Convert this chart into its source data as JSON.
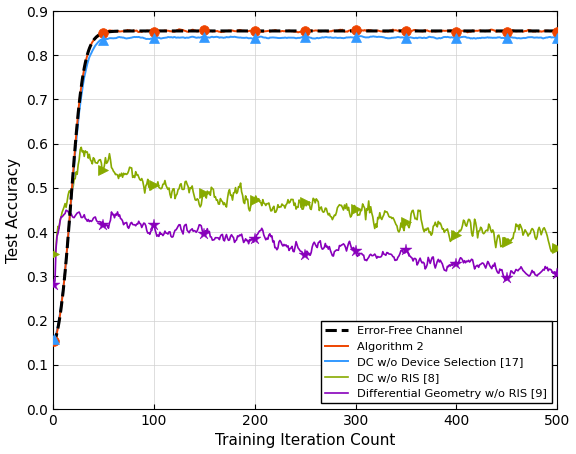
{
  "title": "",
  "xlabel": "Training Iteration Count",
  "ylabel": "Test Accuracy",
  "xlim": [
    0,
    500
  ],
  "ylim": [
    0,
    0.9
  ],
  "yticks": [
    0,
    0.1,
    0.2,
    0.3,
    0.4,
    0.5,
    0.6,
    0.7,
    0.8,
    0.9
  ],
  "xticks": [
    0,
    100,
    200,
    300,
    400,
    500
  ],
  "legend": {
    "error_free": "Error-Free Channel",
    "alg2": "Algorithm 2",
    "dc_wo_ris": "DC w/o RIS [8]",
    "dc_wo_dev": "DC w/o Device Selection [17]",
    "diff_geom": "Differential Geometry w/o RIS [9]"
  },
  "colors": {
    "error_free": "#000000",
    "alg2": "#EE4400",
    "dc_wo_ris": "#88AA00",
    "dc_wo_dev": "#3399FF",
    "diff_geom": "#8800BB"
  },
  "marker_iterations": [
    1,
    50,
    100,
    150,
    200,
    250,
    300,
    350,
    400,
    450,
    500
  ],
  "seed": 42
}
